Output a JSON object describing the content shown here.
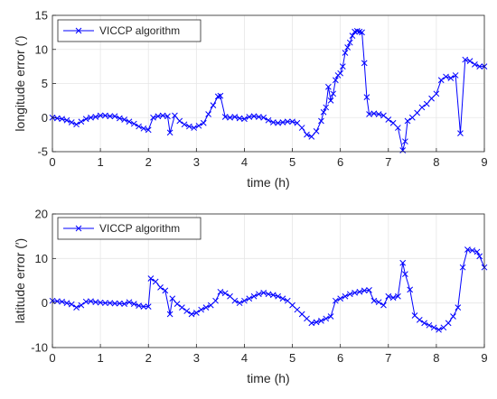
{
  "chart_data": [
    {
      "type": "line",
      "xlabel": "time (h)",
      "ylabel": "longitude error (′)",
      "xlim": [
        0,
        9
      ],
      "ylim": [
        -5,
        15
      ],
      "xticks": [
        "0",
        "1",
        "2",
        "3",
        "4",
        "5",
        "6",
        "7",
        "8",
        "9"
      ],
      "yticks": [
        "-5",
        "0",
        "5",
        "10",
        "15"
      ],
      "grid": true,
      "legend_position": "top-left",
      "series": [
        {
          "name": "VICCP algorithm",
          "color": "#0000ff",
          "marker": "x",
          "x": [
            0.0,
            0.1,
            0.2,
            0.3,
            0.4,
            0.5,
            0.6,
            0.7,
            0.8,
            0.9,
            1.0,
            1.1,
            1.2,
            1.3,
            1.4,
            1.5,
            1.6,
            1.7,
            1.8,
            1.9,
            2.0,
            2.1,
            2.2,
            2.3,
            2.4,
            2.45,
            2.55,
            2.65,
            2.75,
            2.85,
            2.95,
            3.05,
            3.15,
            3.25,
            3.35,
            3.45,
            3.5,
            3.6,
            3.7,
            3.8,
            3.9,
            4.0,
            4.1,
            4.2,
            4.3,
            4.4,
            4.5,
            4.6,
            4.7,
            4.8,
            4.9,
            5.0,
            5.1,
            5.2,
            5.3,
            5.4,
            5.5,
            5.6,
            5.65,
            5.7,
            5.75,
            5.8,
            5.85,
            5.9,
            5.95,
            6.0,
            6.05,
            6.1,
            6.15,
            6.2,
            6.25,
            6.3,
            6.35,
            6.4,
            6.45,
            6.5,
            6.55,
            6.6,
            6.7,
            6.8,
            6.9,
            7.0,
            7.1,
            7.2,
            7.3,
            7.35,
            7.4,
            7.5,
            7.6,
            7.7,
            7.8,
            7.9,
            8.0,
            8.1,
            8.2,
            8.3,
            8.4,
            8.5,
            8.6,
            8.7,
            8.8,
            8.9,
            9.0
          ],
          "y": [
            0.0,
            -0.1,
            -0.2,
            -0.4,
            -0.7,
            -1.0,
            -0.6,
            -0.2,
            0.0,
            0.1,
            0.3,
            0.3,
            0.2,
            0.2,
            -0.1,
            -0.3,
            -0.6,
            -0.9,
            -1.3,
            -1.6,
            -1.8,
            0.0,
            0.2,
            0.3,
            0.2,
            -2.2,
            0.3,
            -0.5,
            -1.0,
            -1.3,
            -1.5,
            -1.2,
            -0.8,
            0.5,
            1.8,
            3.1,
            3.2,
            0.1,
            0.0,
            0.1,
            -0.1,
            -0.2,
            0.1,
            0.2,
            0.1,
            0.0,
            -0.4,
            -0.7,
            -0.8,
            -0.7,
            -0.6,
            -0.6,
            -0.8,
            -1.5,
            -2.5,
            -2.8,
            -2.0,
            -0.5,
            0.8,
            1.5,
            4.5,
            2.5,
            3.5,
            5.5,
            6.2,
            6.5,
            7.5,
            9.5,
            10.3,
            11.0,
            12.0,
            12.6,
            12.7,
            12.6,
            12.5,
            8.0,
            3.0,
            0.5,
            0.6,
            0.5,
            0.3,
            -0.3,
            -0.8,
            -1.5,
            -4.8,
            -3.5,
            -0.5,
            0.0,
            0.7,
            1.5,
            2.0,
            2.8,
            3.5,
            5.5,
            6.0,
            5.8,
            6.2,
            -2.3,
            8.5,
            8.3,
            7.8,
            7.5,
            7.5
          ]
        }
      ]
    },
    {
      "type": "line",
      "xlabel": "time (h)",
      "ylabel": "latitude error (′)",
      "xlim": [
        0,
        9
      ],
      "ylim": [
        -10,
        20
      ],
      "xticks": [
        "0",
        "1",
        "2",
        "3",
        "4",
        "5",
        "6",
        "7",
        "8",
        "9"
      ],
      "yticks": [
        "-10",
        "0",
        "10",
        "20"
      ],
      "grid": true,
      "legend_position": "top-left",
      "series": [
        {
          "name": "VICCP algorithm",
          "color": "#0000ff",
          "marker": "x",
          "x": [
            0.0,
            0.1,
            0.2,
            0.3,
            0.4,
            0.5,
            0.6,
            0.7,
            0.8,
            0.9,
            1.0,
            1.1,
            1.2,
            1.3,
            1.4,
            1.5,
            1.6,
            1.7,
            1.8,
            1.9,
            2.0,
            2.05,
            2.15,
            2.25,
            2.35,
            2.45,
            2.5,
            2.6,
            2.7,
            2.8,
            2.9,
            3.0,
            3.1,
            3.2,
            3.3,
            3.4,
            3.5,
            3.6,
            3.7,
            3.8,
            3.9,
            4.0,
            4.1,
            4.2,
            4.3,
            4.4,
            4.5,
            4.6,
            4.7,
            4.8,
            4.9,
            5.0,
            5.1,
            5.2,
            5.3,
            5.4,
            5.5,
            5.6,
            5.7,
            5.8,
            5.9,
            6.0,
            6.1,
            6.2,
            6.3,
            6.4,
            6.5,
            6.6,
            6.7,
            6.8,
            6.9,
            7.0,
            7.1,
            7.2,
            7.3,
            7.35,
            7.45,
            7.55,
            7.65,
            7.75,
            7.85,
            7.95,
            8.05,
            8.15,
            8.25,
            8.35,
            8.45,
            8.55,
            8.65,
            8.75,
            8.85,
            8.9,
            9.0
          ],
          "y": [
            0.5,
            0.4,
            0.3,
            0.0,
            -0.3,
            -1.0,
            -0.5,
            0.3,
            0.4,
            0.2,
            0.1,
            0.0,
            0.0,
            -0.1,
            -0.1,
            -0.2,
            0.2,
            -0.2,
            -0.6,
            -0.8,
            -0.8,
            5.5,
            4.8,
            3.5,
            2.8,
            -2.5,
            1.0,
            -0.2,
            -1.0,
            -1.8,
            -2.5,
            -2.2,
            -1.5,
            -1.0,
            -0.5,
            0.5,
            2.5,
            2.2,
            1.5,
            0.5,
            0.0,
            0.5,
            1.0,
            1.5,
            2.0,
            2.3,
            2.0,
            1.8,
            1.5,
            1.0,
            0.5,
            -0.5,
            -1.5,
            -2.5,
            -3.5,
            -4.5,
            -4.3,
            -4.0,
            -3.5,
            -3.0,
            0.5,
            1.0,
            1.5,
            2.0,
            2.3,
            2.5,
            2.8,
            2.9,
            0.5,
            0.2,
            -0.5,
            1.5,
            1.2,
            1.5,
            9.0,
            6.5,
            3.0,
            -2.8,
            -3.8,
            -4.5,
            -5.0,
            -5.5,
            -6.0,
            -5.5,
            -4.5,
            -3.0,
            -1.0,
            8.0,
            12.0,
            11.8,
            11.5,
            10.5,
            8.0
          ]
        }
      ]
    }
  ]
}
